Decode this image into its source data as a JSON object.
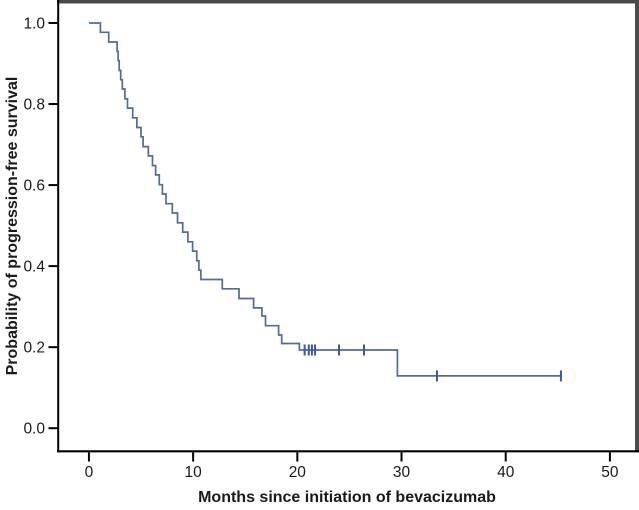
{
  "chart_data": {
    "type": "line",
    "subtype": "kaplan-meier-step",
    "title": "",
    "xlabel": "Months since initiation of bevacizumab",
    "ylabel": "Probability of progression-free survival",
    "xlim": [
      -2.95,
      52.6
    ],
    "ylim": [
      -0.057,
      1.053
    ],
    "grid": false,
    "legend": "none",
    "x_ticks": [
      {
        "v": 0,
        "label": "0"
      },
      {
        "v": 10,
        "label": "10"
      },
      {
        "v": 20,
        "label": "20"
      },
      {
        "v": 30,
        "label": "30"
      },
      {
        "v": 40,
        "label": "40"
      },
      {
        "v": 50,
        "label": "50"
      }
    ],
    "y_ticks": [
      {
        "v": 0.0,
        "label": "0.0"
      },
      {
        "v": 0.2,
        "label": "0.2"
      },
      {
        "v": 0.4,
        "label": "0.4"
      },
      {
        "v": 0.6,
        "label": "0.6"
      },
      {
        "v": 0.8,
        "label": "0.8"
      },
      {
        "v": 1.0,
        "label": "1.0"
      }
    ],
    "colors": {
      "curve": "#56689c",
      "censor": "#3d55a6",
      "axis": "#000000",
      "frame": "#4b4b4b",
      "text": "#1a1a1a",
      "background": "#ffffff"
    },
    "series": [
      {
        "name": "Progression-free survival",
        "steps": [
          [
            0,
            1.0
          ],
          [
            1.1,
            0.977
          ],
          [
            1.9,
            0.953
          ],
          [
            2.7,
            0.93
          ],
          [
            2.8,
            0.907
          ],
          [
            2.9,
            0.883
          ],
          [
            3.05,
            0.86
          ],
          [
            3.2,
            0.837
          ],
          [
            3.45,
            0.813
          ],
          [
            3.7,
            0.79
          ],
          [
            4.2,
            0.766
          ],
          [
            4.6,
            0.742
          ],
          [
            5.0,
            0.719
          ],
          [
            5.2,
            0.695
          ],
          [
            5.7,
            0.672
          ],
          [
            6.1,
            0.648
          ],
          [
            6.4,
            0.625
          ],
          [
            6.75,
            0.601
          ],
          [
            7.05,
            0.578
          ],
          [
            7.4,
            0.554
          ],
          [
            8.0,
            0.531
          ],
          [
            8.5,
            0.507
          ],
          [
            9.0,
            0.484
          ],
          [
            9.5,
            0.46
          ],
          [
            9.95,
            0.437
          ],
          [
            10.35,
            0.413
          ],
          [
            10.55,
            0.39
          ],
          [
            10.75,
            0.367
          ],
          [
            12.8,
            0.344
          ],
          [
            14.4,
            0.32
          ],
          [
            15.8,
            0.297
          ],
          [
            16.6,
            0.277
          ],
          [
            16.95,
            0.253
          ],
          [
            18.2,
            0.23
          ],
          [
            18.5,
            0.209
          ],
          [
            20.2,
            0.193
          ],
          [
            29.6,
            0.129
          ]
        ],
        "end_time": 45.4,
        "censored": [
          [
            20.7,
            0.193
          ],
          [
            21.1,
            0.193
          ],
          [
            21.4,
            0.193
          ],
          [
            21.7,
            0.193
          ],
          [
            24.0,
            0.193
          ],
          [
            26.4,
            0.193
          ],
          [
            33.4,
            0.129
          ],
          [
            45.3,
            0.129
          ]
        ]
      }
    ]
  }
}
